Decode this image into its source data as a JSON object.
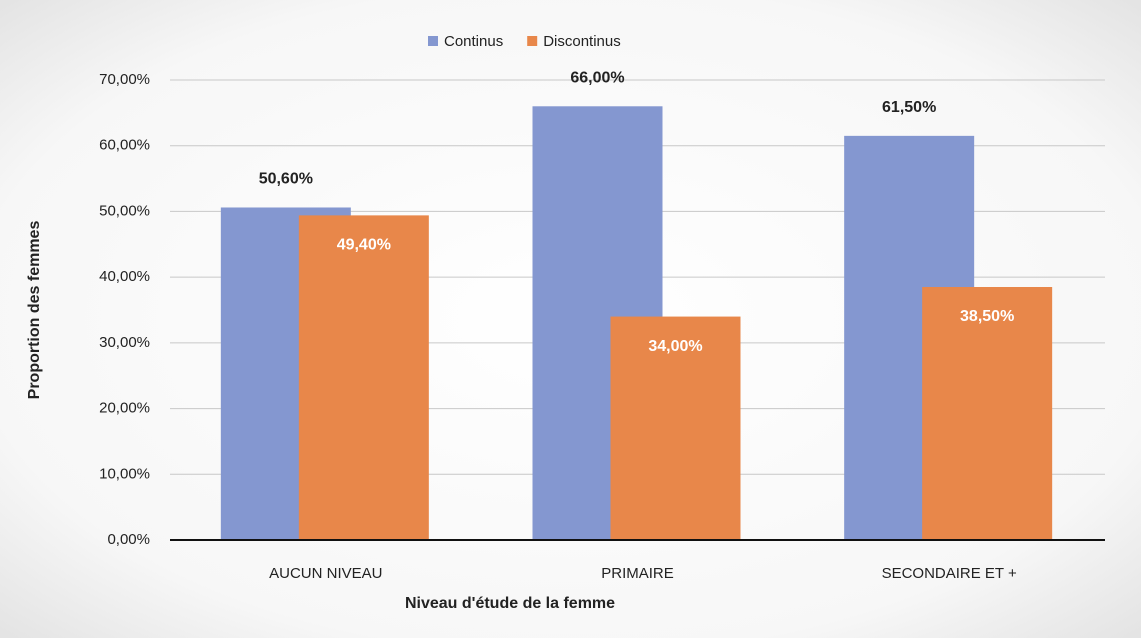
{
  "chart_data": {
    "type": "bar",
    "categories": [
      "AUCUN NIVEAU",
      "PRIMAIRE",
      "SECONDAIRE ET +"
    ],
    "series": [
      {
        "name": "Continus",
        "color": "#8497d0",
        "values": [
          50.6,
          66.0,
          61.5
        ],
        "value_labels": [
          "50,60%",
          "66,00%",
          "61,50%"
        ]
      },
      {
        "name": "Discontinus",
        "color": "#e8874a",
        "values": [
          49.4,
          34.0,
          38.5
        ],
        "value_labels": [
          "49,40%",
          "34,00%",
          "38,50%"
        ]
      }
    ],
    "xlabel": "Niveau d'étude de la femme",
    "ylabel": "Proportion des femmes",
    "ylim": [
      0,
      70
    ],
    "yticks": [
      {
        "value": 0,
        "label": "0,00%"
      },
      {
        "value": 10,
        "label": "10,00%"
      },
      {
        "value": 20,
        "label": "20,00%"
      },
      {
        "value": 30,
        "label": "30,00%"
      },
      {
        "value": 40,
        "label": "40,00%"
      },
      {
        "value": 50,
        "label": "50,00%"
      },
      {
        "value": 60,
        "label": "60,00%"
      },
      {
        "value": 70,
        "label": "70,00%"
      }
    ],
    "grid": true,
    "legend": "top"
  }
}
